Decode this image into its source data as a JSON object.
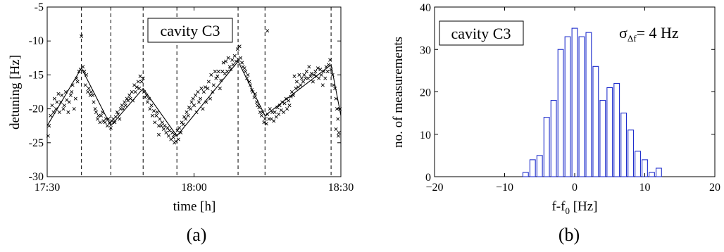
{
  "chart_data": [
    {
      "panel": "(a)",
      "type": "scatter",
      "annotation": "cavity C3",
      "xlabel": "time [h]",
      "ylabel": "detuning [Hz]",
      "x_ticks": [
        "17:30",
        "18:00",
        "18:30"
      ],
      "y_ticks": [
        "-5",
        "-10",
        "-15",
        "-20",
        "-25",
        "-30"
      ],
      "xlim": [
        0,
        60
      ],
      "ylim": [
        -30,
        -5
      ],
      "vertical_dashed_lines_min": [
        7,
        13,
        19.6,
        26.5,
        39,
        44.5,
        58
      ],
      "fit_line": {
        "x": [
          0,
          7,
          13,
          19.6,
          26.5,
          39,
          44.5,
          58,
          60
        ],
        "y": [
          -22.5,
          -14,
          -22.5,
          -17,
          -24,
          -13,
          -21,
          -13.5,
          -21
        ]
      },
      "points": [
        [
          0.2,
          -24
        ],
        [
          0.4,
          -22.5
        ],
        [
          0.7,
          -21
        ],
        [
          1.0,
          -19.5
        ],
        [
          1.3,
          -20.5
        ],
        [
          1.5,
          -18.5
        ],
        [
          1.8,
          -20
        ],
        [
          2.0,
          -19
        ],
        [
          2.3,
          -17.8
        ],
        [
          2.5,
          -20.5
        ],
        [
          2.8,
          -19
        ],
        [
          3.0,
          -18
        ],
        [
          3.3,
          -20
        ],
        [
          3.5,
          -19.5
        ],
        [
          3.8,
          -17.5
        ],
        [
          4.0,
          -18.7
        ],
        [
          4.3,
          -20.5
        ],
        [
          4.5,
          -19
        ],
        [
          4.8,
          -18
        ],
        [
          5.0,
          -17.5
        ],
        [
          5.2,
          -16.5
        ],
        [
          5.5,
          -20
        ],
        [
          5.8,
          -18.5
        ],
        [
          6.0,
          -15.5
        ],
        [
          6.2,
          -16
        ],
        [
          6.5,
          -14.5
        ],
        [
          6.8,
          -14.2
        ],
        [
          7.0,
          -9.3
        ],
        [
          7.3,
          -13.8
        ],
        [
          7.6,
          -14.5
        ],
        [
          7.8,
          -16.5
        ],
        [
          8.0,
          -15
        ],
        [
          8.3,
          -17.5
        ],
        [
          8.5,
          -17
        ],
        [
          8.8,
          -18
        ],
        [
          9.0,
          -17.5
        ],
        [
          9.3,
          -18
        ],
        [
          9.5,
          -19
        ],
        [
          9.8,
          -20
        ],
        [
          10.0,
          -20.5
        ],
        [
          10.3,
          -21.5
        ],
        [
          10.5,
          -21
        ],
        [
          10.8,
          -22
        ],
        [
          11.0,
          -21
        ],
        [
          11.3,
          -20.5
        ],
        [
          11.5,
          -21.8
        ],
        [
          11.8,
          -22
        ],
        [
          12.0,
          -21.5
        ],
        [
          12.3,
          -22.5
        ],
        [
          12.5,
          -21.5
        ],
        [
          12.8,
          -22
        ],
        [
          13.0,
          -22.8
        ],
        [
          13.2,
          -21.8
        ],
        [
          13.5,
          -21.5
        ],
        [
          13.8,
          -22
        ],
        [
          14.0,
          -21.2
        ],
        [
          14.3,
          -20.5
        ],
        [
          14.5,
          -20.8
        ],
        [
          14.8,
          -21.5
        ],
        [
          15.0,
          -20
        ],
        [
          15.3,
          -19.5
        ],
        [
          15.5,
          -20
        ],
        [
          15.8,
          -19
        ],
        [
          16.0,
          -19.5
        ],
        [
          16.3,
          -18.5
        ],
        [
          16.5,
          -18.8
        ],
        [
          16.8,
          -18
        ],
        [
          17.0,
          -18.5
        ],
        [
          17.3,
          -17.5
        ],
        [
          17.5,
          -18.8
        ],
        [
          17.8,
          -16.5
        ],
        [
          18.0,
          -17.5
        ],
        [
          18.3,
          -16.8
        ],
        [
          18.6,
          -16
        ],
        [
          18.8,
          -17
        ],
        [
          19.0,
          -15.2
        ],
        [
          19.3,
          -16
        ],
        [
          19.6,
          -15.5
        ],
        [
          19.8,
          -17.5
        ],
        [
          20.0,
          -18.3
        ],
        [
          20.3,
          -18
        ],
        [
          20.5,
          -19
        ],
        [
          20.8,
          -18.5
        ],
        [
          21.0,
          -20
        ],
        [
          21.3,
          -19.5
        ],
        [
          21.5,
          -21
        ],
        [
          21.8,
          -20.3
        ],
        [
          22.0,
          -22
        ],
        [
          22.3,
          -21
        ],
        [
          22.5,
          -20.5
        ],
        [
          22.8,
          -22.5
        ],
        [
          23.0,
          -21.5
        ],
        [
          23.3,
          -22.5
        ],
        [
          23.5,
          -22
        ],
        [
          23.8,
          -23
        ],
        [
          24.0,
          -22.5
        ],
        [
          24.3,
          -23.5
        ],
        [
          24.6,
          -22.8
        ],
        [
          24.8,
          -24
        ],
        [
          25.0,
          -23.2
        ],
        [
          25.3,
          -24.5
        ],
        [
          25.6,
          -23.5
        ],
        [
          25.8,
          -24.2
        ],
        [
          26.0,
          -23.8
        ],
        [
          26.3,
          -24.8
        ],
        [
          26.6,
          -23.2
        ],
        [
          26.8,
          -24.5
        ],
        [
          27.0,
          -22.8
        ],
        [
          27.3,
          -23.5
        ],
        [
          27.5,
          -22
        ],
        [
          27.8,
          -22.3
        ],
        [
          28.0,
          -21.2
        ],
        [
          28.3,
          -21.5
        ],
        [
          28.5,
          -20.5
        ],
        [
          28.8,
          -21
        ],
        [
          29.0,
          -19.8
        ],
        [
          29.3,
          -20
        ],
        [
          29.5,
          -19
        ],
        [
          29.8,
          -18.5
        ],
        [
          30.0,
          -19.5
        ],
        [
          30.3,
          -18
        ],
        [
          30.5,
          -20.5
        ],
        [
          30.8,
          -17.5
        ],
        [
          31.0,
          -19
        ],
        [
          31.3,
          -18.5
        ],
        [
          31.5,
          -17
        ],
        [
          31.8,
          -20
        ],
        [
          32.0,
          -17.5
        ],
        [
          32.3,
          -16.8
        ],
        [
          32.5,
          -19
        ],
        [
          32.8,
          -17
        ],
        [
          33.0,
          -16
        ],
        [
          33.3,
          -18.5
        ],
        [
          33.5,
          -15
        ],
        [
          33.8,
          -17.5
        ],
        [
          34.0,
          -16.5
        ],
        [
          34.3,
          -14.5
        ],
        [
          34.5,
          -15.5
        ],
        [
          34.8,
          -15.2
        ],
        [
          35.0,
          -14.5
        ],
        [
          35.3,
          -17
        ],
        [
          35.5,
          -15.8
        ],
        [
          35.8,
          -14.5
        ],
        [
          36.0,
          -13.2
        ],
        [
          36.3,
          -14.8
        ],
        [
          36.5,
          -13
        ],
        [
          36.8,
          -14.5
        ],
        [
          37.0,
          -12.5
        ],
        [
          37.3,
          -13.8
        ],
        [
          37.5,
          -14.2
        ],
        [
          37.8,
          -12.8
        ],
        [
          38.0,
          -13.5
        ],
        [
          38.3,
          -12.2
        ],
        [
          38.6,
          -13
        ],
        [
          38.9,
          -11.2
        ],
        [
          39.1,
          -12.8
        ],
        [
          39.3,
          -10.8
        ],
        [
          39.5,
          -12.5
        ],
        [
          39.8,
          -13.2
        ],
        [
          40.0,
          -13.8
        ],
        [
          40.3,
          -14
        ],
        [
          40.5,
          -14.5
        ],
        [
          40.8,
          -15.5
        ],
        [
          41.0,
          -15
        ],
        [
          41.3,
          -16
        ],
        [
          41.5,
          -16.5
        ],
        [
          41.8,
          -17.2
        ],
        [
          42.0,
          -17.5
        ],
        [
          42.3,
          -18.3
        ],
        [
          42.5,
          -17.8
        ],
        [
          42.8,
          -19
        ],
        [
          43.0,
          -19.5
        ],
        [
          43.3,
          -19.8
        ],
        [
          43.5,
          -20.5
        ],
        [
          43.8,
          -21
        ],
        [
          44.0,
          -20.5
        ],
        [
          44.3,
          -22
        ],
        [
          44.5,
          -21.5
        ],
        [
          44.8,
          -22.2
        ],
        [
          45.0,
          -20.8
        ],
        [
          45.3,
          -21.5
        ],
        [
          45.5,
          -20
        ],
        [
          45.8,
          -21.5
        ],
        [
          46.0,
          -20.5
        ],
        [
          46.3,
          -21.8
        ],
        [
          46.5,
          -20.5
        ],
        [
          46.8,
          -21.2
        ],
        [
          47.0,
          -19.8
        ],
        [
          47.3,
          -20.8
        ],
        [
          47.5,
          -19.5
        ],
        [
          47.8,
          -20.2
        ],
        [
          48.0,
          -19
        ],
        [
          48.3,
          -20.5
        ],
        [
          48.5,
          -19.2
        ],
        [
          48.8,
          -18.5
        ],
        [
          49.0,
          -20
        ],
        [
          49.3,
          -18.8
        ],
        [
          49.5,
          -19.5
        ],
        [
          49.8,
          -18.2
        ],
        [
          50.0,
          -17.5
        ],
        [
          50.3,
          -18
        ],
        [
          50.5,
          -15.2
        ],
        [
          50.8,
          -17
        ],
        [
          51.0,
          -16
        ],
        [
          51.3,
          -16.8
        ],
        [
          51.5,
          -15
        ],
        [
          51.8,
          -16.5
        ],
        [
          52.0,
          -15.5
        ],
        [
          52.3,
          -16
        ],
        [
          52.5,
          -15
        ],
        [
          52.8,
          -15.5
        ],
        [
          53.0,
          -14.5
        ],
        [
          53.3,
          -15.5
        ],
        [
          53.5,
          -13.8
        ],
        [
          53.8,
          -15.2
        ],
        [
          54.0,
          -14.8
        ],
        [
          54.3,
          -16
        ],
        [
          54.5,
          -15
        ],
        [
          54.8,
          -14.5
        ],
        [
          55.0,
          -15.2
        ],
        [
          55.3,
          -14
        ],
        [
          55.5,
          -15.5
        ],
        [
          55.8,
          -14.2
        ],
        [
          56.0,
          -15
        ],
        [
          56.3,
          -16.5
        ],
        [
          56.5,
          -14.5
        ],
        [
          56.8,
          -15.5
        ],
        [
          57.0,
          -13.8
        ],
        [
          57.3,
          -14.5
        ],
        [
          57.5,
          -13.5
        ],
        [
          57.8,
          -12.8
        ],
        [
          58.0,
          -14.2
        ],
        [
          58.3,
          -15
        ],
        [
          58.5,
          -16.5
        ],
        [
          58.8,
          -17
        ],
        [
          59.0,
          -18.5
        ],
        [
          59.2,
          -20
        ],
        [
          59.4,
          -21.5
        ],
        [
          59.6,
          -23.5
        ],
        [
          59.8,
          -20
        ],
        [
          45.0,
          -8.5
        ],
        [
          26.0,
          -25
        ],
        [
          22.8,
          -23.8
        ],
        [
          59.0,
          -23
        ],
        [
          59.5,
          -24
        ]
      ]
    },
    {
      "panel": "(b)",
      "type": "bar",
      "annotation": "cavity C3",
      "sigma_label": "= 4 Hz",
      "xlabel": "f-f",
      "xlabel_sub": "0",
      "xlabel_unit": " [Hz]",
      "ylabel": "no. of measurements",
      "x_ticks": [
        "−20",
        "−10",
        "0",
        "10",
        "20"
      ],
      "y_ticks": [
        "0",
        "10",
        "20",
        "30",
        "40"
      ],
      "xlim": [
        -20,
        20
      ],
      "ylim": [
        0,
        40
      ],
      "bin_width": 1,
      "bin_centers": [
        -8,
        -7,
        -6,
        -5,
        -4,
        -3,
        -2,
        -1,
        0,
        1,
        2,
        3,
        4,
        5,
        6,
        7,
        8,
        9,
        10,
        11,
        12
      ],
      "values": [
        0,
        1,
        4,
        5,
        14,
        18,
        30,
        33,
        35,
        33,
        34,
        26,
        18,
        21,
        22,
        15,
        11,
        6,
        4,
        1,
        2
      ]
    }
  ],
  "panel_labels": [
    "(a)",
    "(b)"
  ]
}
